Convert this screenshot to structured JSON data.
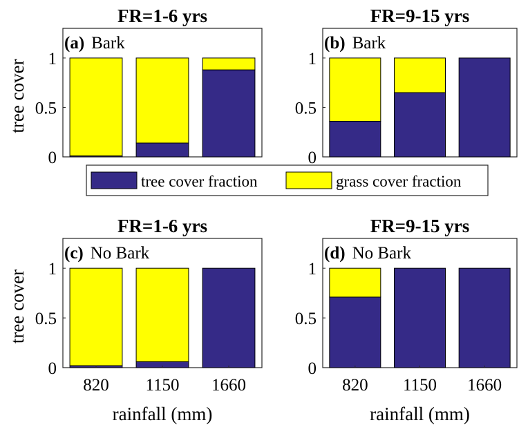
{
  "colors": {
    "tree": "#352a87",
    "grass": "#ffff00",
    "axis": "#262626"
  },
  "legend": {
    "items": [
      {
        "label": "tree cover fraction",
        "color": "#352a87"
      },
      {
        "label": "grass cover fraction",
        "color": "#ffff00"
      }
    ]
  },
  "chart_data": [
    {
      "type": "bar",
      "stacked": true,
      "title": "FR=1-6 yrs",
      "panel_tag": "(a)",
      "panel_label": "Bark",
      "categories": [
        "820",
        "1150",
        "1660"
      ],
      "series": [
        {
          "name": "tree cover fraction",
          "values": [
            0.01,
            0.14,
            0.88
          ]
        },
        {
          "name": "grass cover fraction",
          "values": [
            0.99,
            0.86,
            0.12
          ]
        }
      ],
      "ylabel": "tree cover",
      "xlabel": "",
      "ylim": [
        0,
        1.3
      ],
      "yticks": [
        "0",
        "0.5",
        "1"
      ],
      "show_xticks": false
    },
    {
      "type": "bar",
      "stacked": true,
      "title": "FR=9-15 yrs",
      "panel_tag": "(b)",
      "panel_label": "Bark",
      "categories": [
        "820",
        "1150",
        "1660"
      ],
      "series": [
        {
          "name": "tree cover fraction",
          "values": [
            0.36,
            0.65,
            1.0
          ]
        },
        {
          "name": "grass cover fraction",
          "values": [
            0.64,
            0.35,
            0.0
          ]
        }
      ],
      "ylabel": "",
      "xlabel": "",
      "ylim": [
        0,
        1.3
      ],
      "yticks": [
        "0",
        "0.5",
        "1"
      ],
      "show_xticks": false
    },
    {
      "type": "bar",
      "stacked": true,
      "title": "FR=1-6 yrs",
      "panel_tag": "(c)",
      "panel_label": "No Bark",
      "categories": [
        "820",
        "1150",
        "1660"
      ],
      "series": [
        {
          "name": "tree cover fraction",
          "values": [
            0.02,
            0.06,
            1.0
          ]
        },
        {
          "name": "grass cover fraction",
          "values": [
            0.98,
            0.94,
            0.0
          ]
        }
      ],
      "ylabel": "tree cover",
      "xlabel": "rainfall (mm)",
      "ylim": [
        0,
        1.3
      ],
      "yticks": [
        "0",
        "0.5",
        "1"
      ],
      "show_xticks": true
    },
    {
      "type": "bar",
      "stacked": true,
      "title": "FR=9-15 yrs",
      "panel_tag": "(d)",
      "panel_label": "No Bark",
      "categories": [
        "820",
        "1150",
        "1660"
      ],
      "series": [
        {
          "name": "tree cover fraction",
          "values": [
            0.71,
            1.0,
            1.0
          ]
        },
        {
          "name": "grass cover fraction",
          "values": [
            0.29,
            0.0,
            0.0
          ]
        }
      ],
      "ylabel": "",
      "xlabel": "rainfall (mm)",
      "ylim": [
        0,
        1.3
      ],
      "yticks": [
        "0",
        "0.5",
        "1"
      ],
      "show_xticks": true
    }
  ]
}
